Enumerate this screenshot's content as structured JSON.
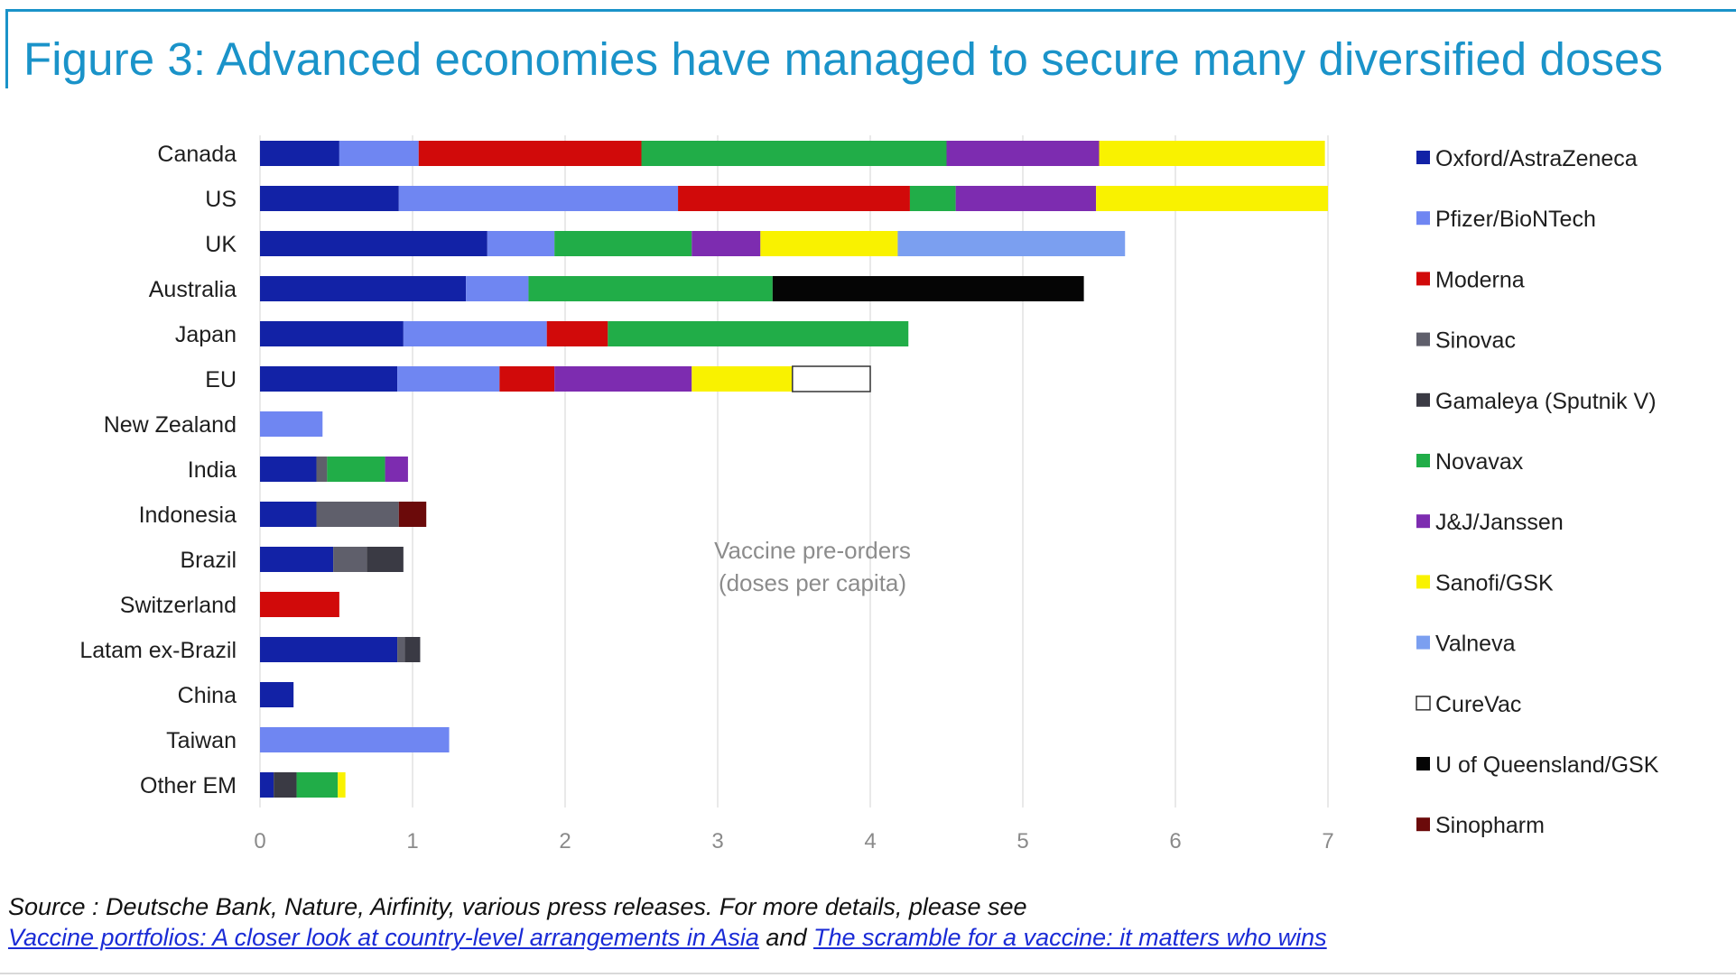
{
  "title": "Figure 3: Advanced economies have managed to secure many diversified doses",
  "source": {
    "text": "Source : Deutsche Bank, Nature, Airfinity, various press releases. For more details, please see",
    "link1": "Vaccine portfolios: A closer look at country-level arrangements in Asia",
    "joiner": "and",
    "link2": "The scramble for a vaccine: it matters who wins"
  },
  "chart_data": {
    "type": "bar",
    "orientation": "horizontal",
    "stacked": true,
    "title": "",
    "annotation": [
      "Vaccine pre-orders",
      "(doses per capita)"
    ],
    "xlim": [
      0,
      7
    ],
    "xticks": [
      0,
      1,
      2,
      3,
      4,
      5,
      6,
      7
    ],
    "grid": "vertical",
    "legend_position": "right",
    "categories": [
      "Canada",
      "US",
      "UK",
      "Australia",
      "Japan",
      "EU",
      "New Zealand",
      "India",
      "Indonesia",
      "Brazil",
      "Switzerland",
      "Latam ex-Brazil",
      "China",
      "Taiwan",
      "Other EM"
    ],
    "series": [
      {
        "name": "Oxford/AstraZeneca",
        "color": "#1222a6",
        "values": [
          0.52,
          0.91,
          1.49,
          1.35,
          0.94,
          0.9,
          0,
          0.37,
          0.37,
          0.48,
          0,
          0.9,
          0.22,
          0,
          0.09
        ]
      },
      {
        "name": "Pfizer/BioNTech",
        "color": "#6f86f2",
        "values": [
          0.52,
          1.83,
          0.44,
          0.41,
          0.94,
          0.67,
          0.41,
          0,
          0,
          0,
          0,
          0,
          0,
          1.24,
          0
        ]
      },
      {
        "name": "Moderna",
        "color": "#d10a0a",
        "values": [
          1.46,
          1.52,
          0,
          0,
          0.4,
          0.36,
          0,
          0,
          0,
          0,
          0.52,
          0,
          0,
          0,
          0
        ]
      },
      {
        "name": "Sinovac",
        "color": "#5f5f6b",
        "values": [
          0,
          0,
          0,
          0,
          0,
          0,
          0,
          0.07,
          0.54,
          0.22,
          0,
          0.05,
          0,
          0,
          0
        ]
      },
      {
        "name": "Gamaleya (Sputnik V)",
        "color": "#3a3a44",
        "values": [
          0,
          0,
          0,
          0,
          0,
          0,
          0,
          0,
          0,
          0.24,
          0,
          0.1,
          0,
          0,
          0.15
        ]
      },
      {
        "name": "Novavax",
        "color": "#21ad48",
        "values": [
          2.0,
          0.3,
          0.9,
          1.6,
          1.97,
          0,
          0,
          0.38,
          0,
          0,
          0,
          0,
          0,
          0,
          0.27
        ]
      },
      {
        "name": "J&J/Janssen",
        "color": "#7d2cb0",
        "values": [
          1.0,
          0.92,
          0.45,
          0,
          0,
          0.9,
          0,
          0.15,
          0,
          0,
          0,
          0,
          0,
          0,
          0
        ]
      },
      {
        "name": "Sanofi/GSK",
        "color": "#f9f200",
        "values": [
          1.48,
          1.52,
          0.9,
          0,
          0,
          0.66,
          0,
          0,
          0,
          0,
          0,
          0,
          0,
          0,
          0.05
        ]
      },
      {
        "name": "Valneva",
        "color": "#7b9ff0",
        "values": [
          0,
          0,
          1.49,
          0,
          0,
          0,
          0,
          0,
          0,
          0,
          0,
          0,
          0,
          0,
          0
        ]
      },
      {
        "name": "CureVac",
        "color": "#ffffff",
        "values": [
          0,
          0,
          0,
          0,
          0,
          0.51,
          0,
          0,
          0,
          0,
          0,
          0,
          0,
          0,
          0
        ]
      },
      {
        "name": "U of Queensland/GSK",
        "color": "#050505",
        "values": [
          0,
          0,
          0,
          2.04,
          0,
          0,
          0,
          0,
          0,
          0,
          0,
          0,
          0,
          0,
          0
        ]
      },
      {
        "name": "Sinopharm",
        "color": "#6b0a0a",
        "values": [
          0,
          0,
          0,
          0,
          0,
          0,
          0,
          0,
          0.18,
          0,
          0,
          0,
          0,
          0,
          0
        ]
      }
    ]
  }
}
